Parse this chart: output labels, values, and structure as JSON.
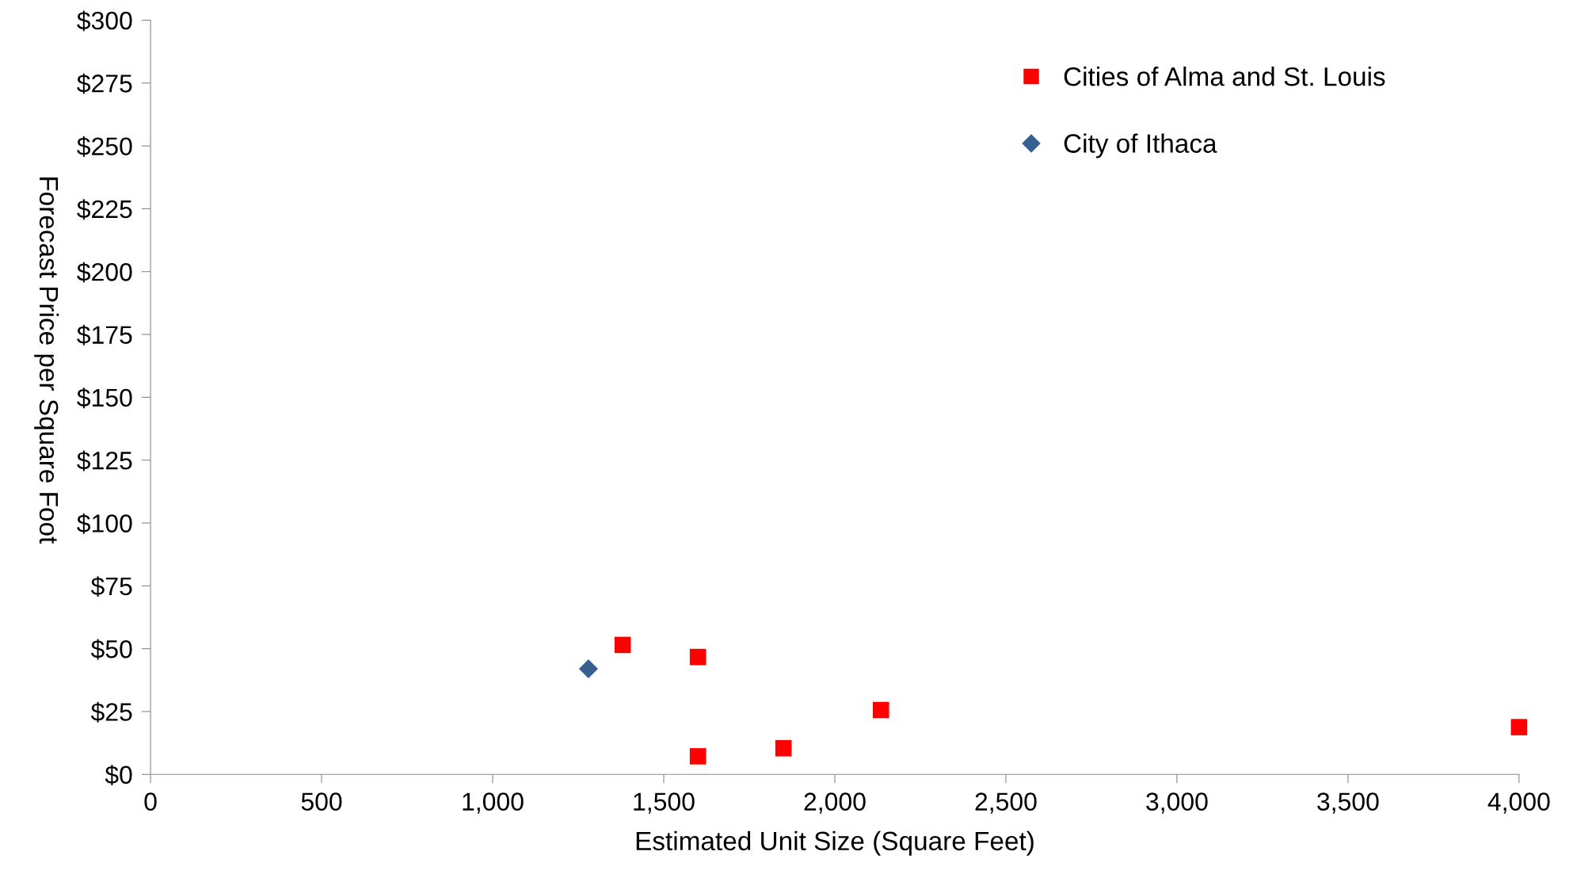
{
  "chart_data": {
    "type": "scatter",
    "xlabel": "Estimated Unit Size (Square Feet)",
    "ylabel": "Forecast Price per Square Foot",
    "series": [
      {
        "name": "Cities of Alma and St. Louis",
        "color": "#ff0000",
        "marker": "square",
        "x": [
          1380,
          1600,
          1600,
          1850,
          2135,
          4000
        ],
        "values": [
          51.5,
          46.7,
          7.2,
          10.4,
          25.6,
          18.8
        ]
      },
      {
        "name": "City of Ithaca",
        "color": "#376092",
        "marker": "diamond",
        "x": [
          1280
        ],
        "values": [
          42
        ]
      }
    ],
    "xlim": [
      0,
      4000
    ],
    "xticks": [
      0,
      {
        "value": 500,
        "label": "500"
      },
      {
        "value": 1000,
        "label": "1,000"
      },
      {
        "value": 1500,
        "label": "1,500"
      },
      {
        "value": 2000,
        "label": "2,000"
      },
      {
        "value": 2500,
        "label": "2,500"
      },
      {
        "value": 3000,
        "label": "3,000"
      },
      {
        "value": 3500,
        "label": "3,500"
      },
      {
        "value": 4000,
        "label": "4,000"
      }
    ],
    "ylim": [
      0,
      300
    ],
    "yticks": [
      {
        "value": 0,
        "label": "$0"
      },
      {
        "value": 25,
        "label": "$25"
      },
      {
        "value": 50,
        "label": "$50"
      },
      {
        "value": 75,
        "label": "$75"
      },
      {
        "value": 100,
        "label": "$100"
      },
      {
        "value": 125,
        "label": "$125"
      },
      {
        "value": 150,
        "label": "$150"
      },
      {
        "value": 175,
        "label": "$175"
      },
      {
        "value": 200,
        "label": "$200"
      },
      {
        "value": 225,
        "label": "$225"
      },
      {
        "value": 250,
        "label": "$250"
      },
      {
        "value": 275,
        "label": "$275"
      },
      {
        "value": 300,
        "label": "$300"
      }
    ],
    "grid": false,
    "legend": "top right"
  }
}
